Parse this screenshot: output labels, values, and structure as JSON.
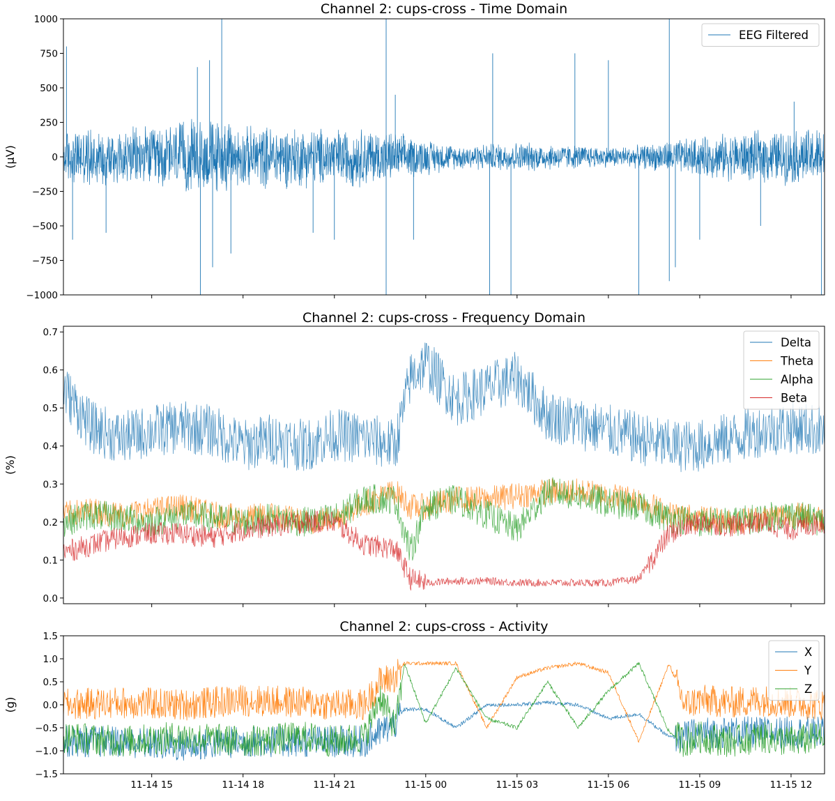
{
  "figure": {
    "background": "#ffffff"
  },
  "x_axis": {
    "tick_labels": [
      "11-14 15",
      "11-14 18",
      "11-14 21",
      "11-15 00",
      "11-15 03",
      "11-15 06",
      "11-15 09",
      "11-15 12"
    ],
    "tick_hours": [
      15,
      18,
      21,
      24,
      27,
      30,
      33,
      36
    ],
    "range_hours": [
      12.1,
      37.1
    ]
  },
  "chart_data": [
    {
      "type": "line",
      "title": "Channel 2: cups-cross - Time Domain",
      "ylabel": "(μV)",
      "ylim": [
        -1000,
        1000
      ],
      "yticks": [
        -1000,
        -750,
        -500,
        -250,
        0,
        250,
        500,
        750,
        1000
      ],
      "ytick_labels": [
        "−1000",
        "−750",
        "−500",
        "−250",
        "0",
        "250",
        "500",
        "750",
        "1000"
      ],
      "legend_position": "top-right",
      "series": [
        {
          "name": "EEG Filtered",
          "color": "#1f77b4"
        }
      ],
      "envelope_hours": [
        12.1,
        13,
        14,
        15,
        16,
        17,
        18,
        19,
        20,
        21,
        22,
        23,
        24,
        25,
        26,
        27,
        28,
        29,
        30,
        31,
        32,
        33,
        34,
        35,
        36,
        37.1
      ],
      "envelope_uv": [
        180,
        200,
        190,
        200,
        240,
        260,
        200,
        210,
        200,
        190,
        200,
        160,
        120,
        80,
        90,
        100,
        90,
        80,
        70,
        75,
        110,
        130,
        160,
        170,
        180,
        200
      ],
      "spikes": [
        {
          "hour": 12.2,
          "value": 800
        },
        {
          "hour": 12.4,
          "value": -600
        },
        {
          "hour": 13.5,
          "value": -550
        },
        {
          "hour": 16.5,
          "value": 650
        },
        {
          "hour": 16.6,
          "value": -1000
        },
        {
          "hour": 16.9,
          "value": 700
        },
        {
          "hour": 17.0,
          "value": -800
        },
        {
          "hour": 17.3,
          "value": 1000
        },
        {
          "hour": 17.6,
          "value": -700
        },
        {
          "hour": 20.3,
          "value": -550
        },
        {
          "hour": 21.0,
          "value": -600
        },
        {
          "hour": 22.7,
          "value": 1000
        },
        {
          "hour": 22.7,
          "value": -1000
        },
        {
          "hour": 23.0,
          "value": 450
        },
        {
          "hour": 23.6,
          "value": -600
        },
        {
          "hour": 26.1,
          "value": -1000
        },
        {
          "hour": 26.2,
          "value": 750
        },
        {
          "hour": 26.8,
          "value": -1000
        },
        {
          "hour": 28.9,
          "value": 750
        },
        {
          "hour": 30.0,
          "value": 700
        },
        {
          "hour": 31.0,
          "value": -1000
        },
        {
          "hour": 32.0,
          "value": 1000
        },
        {
          "hour": 32.0,
          "value": -900
        },
        {
          "hour": 32.2,
          "value": -800
        },
        {
          "hour": 33.0,
          "value": -600
        },
        {
          "hour": 35.0,
          "value": -500
        },
        {
          "hour": 36.1,
          "value": 400
        },
        {
          "hour": 37.0,
          "value": -1000
        }
      ]
    },
    {
      "type": "line",
      "title": "Channel 2: cups-cross - Frequency Domain",
      "ylabel": "(%)",
      "ylim": [
        -0.015,
        0.715
      ],
      "yticks": [
        0.0,
        0.1,
        0.2,
        0.3,
        0.4,
        0.5,
        0.6,
        0.7
      ],
      "ytick_labels": [
        "0.0",
        "0.1",
        "0.2",
        "0.3",
        "0.4",
        "0.5",
        "0.6",
        "0.7"
      ],
      "legend_position": "top-right",
      "x_hours": [
        12.1,
        13,
        14,
        15,
        16,
        17,
        18,
        19,
        20,
        21,
        22,
        23,
        23.5,
        24,
        25,
        26,
        27,
        28,
        29,
        30,
        31,
        32,
        33,
        34,
        35,
        36,
        37.1
      ],
      "series": [
        {
          "name": "Delta",
          "color": "#1f77b4",
          "values": [
            0.55,
            0.45,
            0.42,
            0.44,
            0.45,
            0.44,
            0.4,
            0.42,
            0.4,
            0.43,
            0.42,
            0.4,
            0.58,
            0.62,
            0.52,
            0.55,
            0.58,
            0.48,
            0.46,
            0.44,
            0.42,
            0.4,
            0.4,
            0.42,
            0.44,
            0.45,
            0.44
          ]
        },
        {
          "name": "Theta",
          "color": "#ff7f0e",
          "values": [
            0.22,
            0.23,
            0.22,
            0.23,
            0.24,
            0.22,
            0.21,
            0.22,
            0.2,
            0.21,
            0.25,
            0.28,
            0.24,
            0.24,
            0.26,
            0.26,
            0.27,
            0.28,
            0.28,
            0.27,
            0.26,
            0.22,
            0.21,
            0.2,
            0.21,
            0.22,
            0.21
          ]
        },
        {
          "name": "Alpha",
          "color": "#2ca02c",
          "values": [
            0.2,
            0.22,
            0.21,
            0.2,
            0.22,
            0.21,
            0.2,
            0.21,
            0.2,
            0.21,
            0.26,
            0.26,
            0.12,
            0.24,
            0.26,
            0.22,
            0.18,
            0.28,
            0.27,
            0.25,
            0.24,
            0.21,
            0.2,
            0.2,
            0.21,
            0.22,
            0.2
          ]
        },
        {
          "name": "Beta",
          "color": "#d62728",
          "values": [
            0.12,
            0.14,
            0.16,
            0.17,
            0.17,
            0.16,
            0.18,
            0.19,
            0.2,
            0.2,
            0.14,
            0.13,
            0.05,
            0.04,
            0.045,
            0.045,
            0.04,
            0.04,
            0.04,
            0.04,
            0.05,
            0.17,
            0.2,
            0.19,
            0.2,
            0.18,
            0.2
          ]
        }
      ]
    },
    {
      "type": "line",
      "title": "Channel 2: cups-cross - Activity",
      "ylabel": "(g)",
      "ylim": [
        -1.5,
        1.5
      ],
      "yticks": [
        -1.5,
        -1.0,
        -0.5,
        0.0,
        0.5,
        1.0,
        1.5
      ],
      "ytick_labels": [
        "−1.5",
        "−1.0",
        "−0.5",
        "0.0",
        "0.5",
        "1.0",
        "1.5"
      ],
      "legend_position": "top-right",
      "x_hours": [
        12.1,
        14,
        16,
        18,
        20,
        21,
        22,
        22.5,
        23,
        23.3,
        24,
        25,
        26,
        27,
        28,
        29,
        30,
        31,
        32,
        32.5,
        33,
        34,
        35,
        36,
        37.1
      ],
      "series": [
        {
          "name": "X",
          "color": "#1f77b4",
          "values": [
            -0.8,
            -0.8,
            -0.9,
            -0.8,
            -0.8,
            -0.8,
            -0.8,
            -0.6,
            -0.4,
            -0.1,
            -0.1,
            -0.5,
            0.0,
            0.0,
            0.05,
            0.0,
            -0.3,
            -0.2,
            -0.7,
            -0.7,
            -0.6,
            -0.6,
            -0.6,
            -0.6,
            -0.6
          ]
        },
        {
          "name": "Y",
          "color": "#ff7f0e",
          "values": [
            0.0,
            0.05,
            0.0,
            0.1,
            0.05,
            0.0,
            0.0,
            0.5,
            0.6,
            0.9,
            0.9,
            0.9,
            -0.5,
            0.6,
            0.8,
            0.9,
            0.7,
            -0.8,
            0.9,
            0.0,
            0.1,
            0.05,
            0.1,
            0.05,
            0.0
          ]
        },
        {
          "name": "Z",
          "color": "#2ca02c",
          "values": [
            -0.7,
            -0.8,
            -0.7,
            -0.8,
            -0.7,
            -0.8,
            -0.7,
            0.2,
            -0.5,
            0.9,
            -0.4,
            0.8,
            -0.3,
            -0.5,
            0.5,
            -0.5,
            0.3,
            0.9,
            -0.6,
            -0.8,
            -0.7,
            -0.8,
            -0.7,
            -0.8,
            -0.7
          ]
        }
      ]
    }
  ]
}
